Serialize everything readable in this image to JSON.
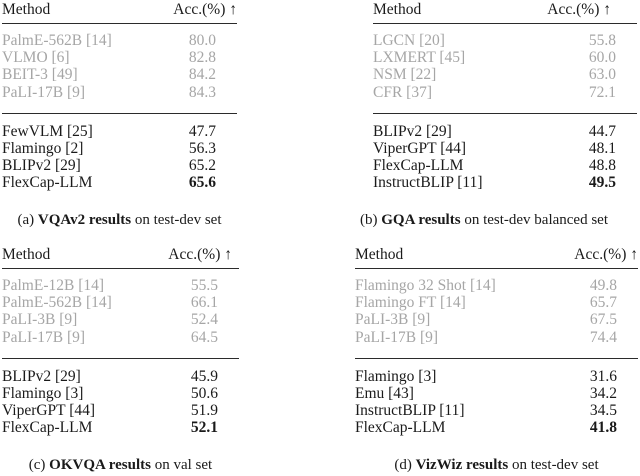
{
  "page": {
    "background": "#ffffff",
    "text_color": "#1a1a1a",
    "muted_row_color": "#a6a6a6",
    "rule_color": "#2b2b2b",
    "arrow_icon": "up-arrow"
  },
  "tables": [
    {
      "name": "vqav2",
      "header": {
        "method": "Method",
        "acc": "Acc.(%) ↑"
      },
      "reference_rows": [
        {
          "method": "PalmE-562B [14]",
          "acc": "80.0"
        },
        {
          "method": "VLMO [6]",
          "acc": "82.8"
        },
        {
          "method": "BEIT-3 [49]",
          "acc": "84.2"
        },
        {
          "method": "PaLI-17B [9]",
          "acc": "84.3"
        }
      ],
      "comparison_rows": [
        {
          "method": "FewVLM [25]",
          "acc": "47.7"
        },
        {
          "method": "Flamingo [2]",
          "acc": "56.3"
        },
        {
          "method": "BLIPv2 [29]",
          "acc": "65.2"
        },
        {
          "method": "FlexCap-LLM",
          "acc": "65.6",
          "bold": true
        }
      ],
      "caption": {
        "label": "(a)",
        "benchmark": "VQAv2 results",
        "rest": "on test-dev set"
      }
    },
    {
      "name": "gqa",
      "header": {
        "method": "Method",
        "acc": "Acc.(%) ↑"
      },
      "reference_rows": [
        {
          "method": "LGCN [20]",
          "acc": "55.8"
        },
        {
          "method": "LXMERT [45]",
          "acc": "60.0"
        },
        {
          "method": "NSM [22]",
          "acc": "63.0"
        },
        {
          "method": "CFR [37]",
          "acc": "72.1"
        }
      ],
      "comparison_rows": [
        {
          "method": "BLIPv2 [29]",
          "acc": "44.7"
        },
        {
          "method": "ViperGPT [44]",
          "acc": "48.1"
        },
        {
          "method": "FlexCap-LLM",
          "acc": "48.8"
        },
        {
          "method": "InstructBLIP [11]",
          "acc": "49.5",
          "bold": true
        }
      ],
      "caption": {
        "label": "(b)",
        "benchmark": "GQA results",
        "rest": "on test-dev balanced set"
      }
    },
    {
      "name": "okvqa",
      "header": {
        "method": "Method",
        "acc": "Acc.(%) ↑"
      },
      "reference_rows": [
        {
          "method": "PalmE-12B [14]",
          "acc": "55.5"
        },
        {
          "method": "PalmE-562B [14]",
          "acc": "66.1"
        },
        {
          "method": "PaLI-3B [9]",
          "acc": "52.4"
        },
        {
          "method": "PaLI-17B [9]",
          "acc": "64.5"
        }
      ],
      "comparison_rows": [
        {
          "method": "BLIPv2 [29]",
          "acc": "45.9"
        },
        {
          "method": "Flamingo [3]",
          "acc": "50.6"
        },
        {
          "method": "ViperGPT [44]",
          "acc": "51.9"
        },
        {
          "method": "FlexCap-LLM",
          "acc": "52.1",
          "bold": true
        }
      ],
      "caption": {
        "label": "(c)",
        "benchmark": "OKVQA results",
        "rest": "on val set"
      }
    },
    {
      "name": "vizwiz",
      "header": {
        "method": "Method",
        "acc": "Acc.(%) ↑"
      },
      "reference_rows": [
        {
          "method": "Flamingo 32 Shot [14]",
          "acc": "49.8"
        },
        {
          "method": "Flamingo FT [14]",
          "acc": "65.7"
        },
        {
          "method": "PaLI-3B [9]",
          "acc": "67.5"
        },
        {
          "method": "PaLI-17B [9]",
          "acc": "74.4"
        }
      ],
      "comparison_rows": [
        {
          "method": "Flamingo [3]",
          "acc": "31.6"
        },
        {
          "method": "Emu [43]",
          "acc": "34.2"
        },
        {
          "method": "InstructBLIP [11]",
          "acc": "34.5"
        },
        {
          "method": "FlexCap-LLM",
          "acc": "41.8",
          "bold": true
        }
      ],
      "caption": {
        "label": "(d)",
        "benchmark": "VizWiz results",
        "rest": "on test-dev set"
      }
    }
  ]
}
